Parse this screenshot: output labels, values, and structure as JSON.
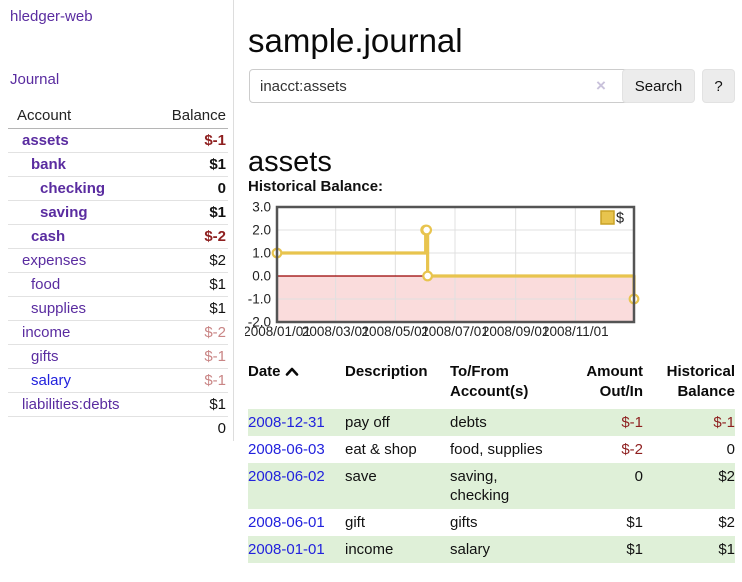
{
  "app_title": "hledger-web",
  "sidebar": {
    "journal_link": "Journal",
    "account_header": "Account",
    "balance_header": "Balance",
    "accounts": [
      {
        "name": "assets",
        "balance": "$-1",
        "indent": 1,
        "bold": true,
        "balance_color": "negative"
      },
      {
        "name": "bank",
        "balance": "$1",
        "indent": 2,
        "bold": true,
        "balance_color": "normal"
      },
      {
        "name": "checking",
        "balance": "0",
        "indent": 3,
        "bold": true,
        "balance_color": "normal"
      },
      {
        "name": "saving",
        "balance": "$1",
        "indent": 3,
        "bold": true,
        "balance_color": "normal"
      },
      {
        "name": "cash",
        "balance": "$-2",
        "indent": 2,
        "bold": true,
        "balance_color": "negative"
      },
      {
        "name": "expenses",
        "balance": "$2",
        "indent": 1,
        "bold": false,
        "balance_color": "normal"
      },
      {
        "name": "food",
        "balance": "$1",
        "indent": 2,
        "bold": false,
        "balance_color": "normal"
      },
      {
        "name": "supplies",
        "balance": "$1",
        "indent": 2,
        "bold": false,
        "balance_color": "normal"
      },
      {
        "name": "income",
        "balance": "$-2",
        "indent": 1,
        "bold": false,
        "balance_color": "negative-faded"
      },
      {
        "name": "gifts",
        "balance": "$-1",
        "indent": 2,
        "bold": false,
        "balance_color": "negative-faded"
      },
      {
        "name": "salary",
        "balance": "$-1",
        "indent": 2,
        "bold": false,
        "balance_color": "negative-faded",
        "link_color": "blue"
      },
      {
        "name": "liabilities:debts",
        "balance": "$1",
        "indent": 1,
        "bold": false,
        "balance_color": "normal"
      }
    ],
    "total": "0"
  },
  "header": {
    "title": "sample.journal"
  },
  "search": {
    "query": "inacct:assets",
    "clear_icon": "×",
    "button_label": "Search",
    "help_label": "?"
  },
  "account_page": {
    "heading": "assets",
    "chart_label": "Historical Balance:"
  },
  "chart_data": {
    "type": "line",
    "style": "step-after",
    "title": "Historical Balance:",
    "series": [
      {
        "name": "$",
        "points": [
          [
            "2008-01-01",
            1
          ],
          [
            "2008-06-01",
            2
          ],
          [
            "2008-06-02",
            2
          ],
          [
            "2008-06-03",
            0
          ],
          [
            "2008-12-31",
            -1
          ]
        ]
      }
    ],
    "x_range": [
      "2008-01-01",
      "2008-12-31"
    ],
    "x_ticks": [
      "2008/01/01",
      "2008/03/01",
      "2008/05/01",
      "2008/07/01",
      "2008/09/01",
      "2008/11/01"
    ],
    "y_ticks": [
      "3.0",
      "2.0",
      "1.0",
      "0.0",
      "-1.0",
      "-2.0"
    ],
    "ylim": [
      -2,
      3
    ],
    "grid": true,
    "legend": {
      "label": "$",
      "position": "top-right"
    },
    "colors": {
      "line": "#e8c44e",
      "marker_fill": "#ffffff",
      "negative_region": "#fadcdc",
      "zero_line": "#990000",
      "grid": "#e0e0e0",
      "border": "#545454",
      "legend_swatch_border": "#c9a227"
    }
  },
  "register": {
    "headers": {
      "date": "Date",
      "sort_icon": "chevron-up",
      "description": "Description",
      "accounts": "To/From Account(s)",
      "amount": "Amount Out/In",
      "balance": "Historical Balance"
    },
    "rows": [
      {
        "date": "2008-12-31",
        "description": "pay off",
        "accounts": "debts",
        "amount": "$-1",
        "balance": "$-1"
      },
      {
        "date": "2008-06-03",
        "description": "eat & shop",
        "accounts": "food, supplies",
        "amount": "$-2",
        "balance": "0"
      },
      {
        "date": "2008-06-02",
        "description": "save",
        "accounts": "saving, checking",
        "amount": "0",
        "balance": "$2"
      },
      {
        "date": "2008-06-01",
        "description": "gift",
        "accounts": "gifts",
        "amount": "$1",
        "balance": "$2"
      },
      {
        "date": "2008-01-01",
        "description": "income",
        "accounts": "salary",
        "amount": "$1",
        "balance": "$1"
      }
    ]
  }
}
